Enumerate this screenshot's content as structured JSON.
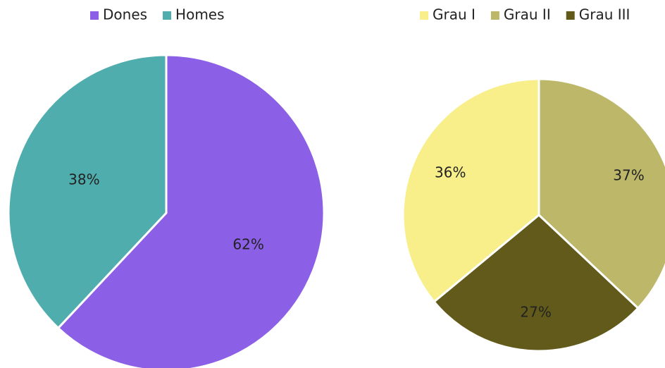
{
  "chart_data": [
    {
      "type": "pie",
      "categories": [
        "Dones",
        "Homes"
      ],
      "values": [
        62,
        38
      ],
      "value_labels": [
        "62%",
        "38%"
      ],
      "colors": [
        "#8b5fe6",
        "#4fadad"
      ],
      "legend": "top"
    },
    {
      "type": "pie",
      "categories": [
        "Grau I",
        "Grau II",
        "Grau III"
      ],
      "values": [
        36,
        37,
        27
      ],
      "value_labels": [
        "36%",
        "37%",
        "27%"
      ],
      "colors": [
        "#f8ef8b",
        "#bdb76a",
        "#625a1a"
      ],
      "legend": "top"
    }
  ]
}
